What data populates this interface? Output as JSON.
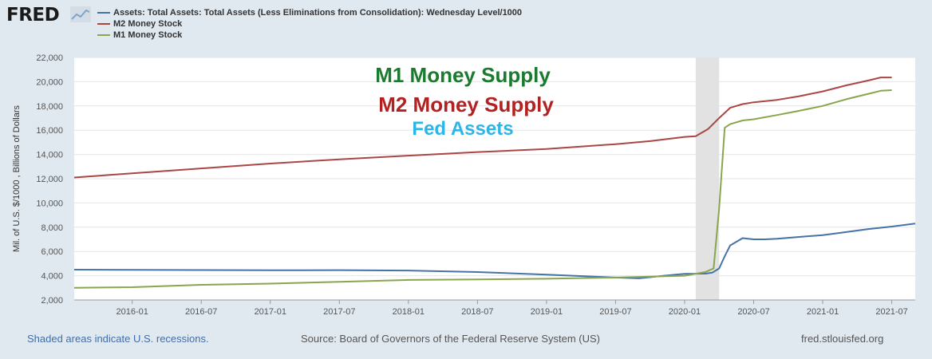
{
  "header": {
    "logo_text": "FRED",
    "logo_icon": "fred-chart-icon"
  },
  "legend": [
    {
      "label": "Assets: Total Assets: Total Assets (Less Eliminations from Consolidation): Wednesday Level/1000",
      "color": "#4572a7"
    },
    {
      "label": "M2 Money Stock",
      "color": "#aa4643"
    },
    {
      "label": "M1 Money Stock",
      "color": "#89a54e"
    }
  ],
  "annotations": [
    {
      "text": "M1 Money Supply",
      "color": "#1a7a2e"
    },
    {
      "text": "M2 Money Supply",
      "color": "#b22222"
    },
    {
      "text": "Fed Assets",
      "color": "#2bb5e8"
    }
  ],
  "footer": {
    "recession_note": "Shaded areas indicate U.S. recessions.",
    "source": "Source: Board of Governors of the Federal Reserve System (US)",
    "site": "fred.stlouisfed.org"
  },
  "chart_data": {
    "type": "line",
    "ylabel": "Mil. of U.S. $/1000 , Billions of Dollars",
    "ylim": [
      2000,
      22000
    ],
    "yticks": [
      2000,
      4000,
      6000,
      8000,
      10000,
      12000,
      14000,
      16000,
      18000,
      20000,
      22000
    ],
    "ytick_labels": [
      "2,000",
      "4,000",
      "6,000",
      "8,000",
      "10,000",
      "12,000",
      "14,000",
      "16,000",
      "18,000",
      "20,000",
      "22,000"
    ],
    "xlim": [
      2015.58,
      2021.67
    ],
    "xticks": [
      2016.0,
      2016.5,
      2017.0,
      2017.5,
      2018.0,
      2018.5,
      2019.0,
      2019.5,
      2020.0,
      2020.5,
      2021.0,
      2021.5
    ],
    "xtick_labels": [
      "2016-01",
      "2016-07",
      "2017-01",
      "2017-07",
      "2018-01",
      "2018-07",
      "2019-01",
      "2019-07",
      "2020-01",
      "2020-07",
      "2021-01",
      "2021-07"
    ],
    "recessions": [
      {
        "start": 2020.08,
        "end": 2020.25
      }
    ],
    "series": [
      {
        "name": "Assets: Total Assets: Total Assets (Less Eliminations from Consolidation): Wednesday Level/1000",
        "color": "#4572a7",
        "x": [
          2015.58,
          2016.0,
          2016.5,
          2017.0,
          2017.5,
          2018.0,
          2018.5,
          2019.0,
          2019.5,
          2019.67,
          2019.85,
          2020.0,
          2020.15,
          2020.2,
          2020.25,
          2020.29,
          2020.33,
          2020.42,
          2020.5,
          2020.58,
          2020.67,
          2020.83,
          2021.0,
          2021.17,
          2021.33,
          2021.5,
          2021.67
        ],
        "values": [
          4500,
          4480,
          4470,
          4450,
          4460,
          4430,
          4300,
          4090,
          3850,
          3780,
          4000,
          4150,
          4170,
          4250,
          4600,
          5600,
          6500,
          7100,
          7000,
          7000,
          7050,
          7200,
          7350,
          7600,
          7850,
          8050,
          8300
        ]
      },
      {
        "name": "M2 Money Stock",
        "color": "#aa4643",
        "x": [
          2015.58,
          2016.0,
          2016.5,
          2017.0,
          2017.5,
          2018.0,
          2018.5,
          2019.0,
          2019.5,
          2019.75,
          2020.0,
          2020.08,
          2020.17,
          2020.25,
          2020.33,
          2020.42,
          2020.5,
          2020.67,
          2020.83,
          2021.0,
          2021.17,
          2021.33,
          2021.42,
          2021.5
        ],
        "values": [
          12100,
          12450,
          12850,
          13250,
          13600,
          13900,
          14200,
          14450,
          14850,
          15100,
          15450,
          15500,
          16100,
          17000,
          17850,
          18150,
          18300,
          18500,
          18800,
          19200,
          19700,
          20100,
          20350,
          20350
        ]
      },
      {
        "name": "M1 Money Stock",
        "color": "#89a54e",
        "x": [
          2015.58,
          2016.0,
          2016.5,
          2017.0,
          2017.5,
          2018.0,
          2018.5,
          2019.0,
          2019.5,
          2020.0,
          2020.15,
          2020.21,
          2020.25,
          2020.29,
          2020.33,
          2020.42,
          2020.5,
          2020.67,
          2020.83,
          2021.0,
          2021.17,
          2021.33,
          2021.42,
          2021.5
        ],
        "values": [
          3000,
          3050,
          3250,
          3350,
          3500,
          3650,
          3700,
          3750,
          3850,
          4000,
          4300,
          4600,
          9500,
          16200,
          16500,
          16800,
          16900,
          17250,
          17600,
          18000,
          18550,
          19000,
          19250,
          19300
        ]
      }
    ]
  }
}
